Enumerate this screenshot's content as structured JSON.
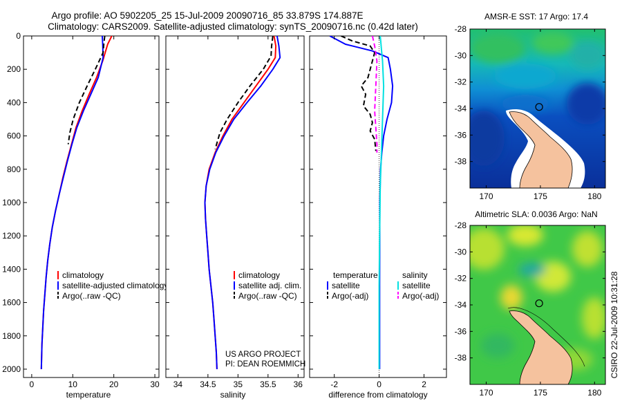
{
  "header": {
    "title_line1": "Argo profile: AO 5902205_25 15-Jul-2009 20090716_85 33.879S 174.887E",
    "title_line2": "Climatology: CARS2009. Satellite-adjusted climatology: synTS_20090716.nc (0.42d later)"
  },
  "side_label": "CSIRO 22-Jul-2009 10:31:28",
  "colors": {
    "red": "#ff0000",
    "blue": "#0000ff",
    "black": "#000000",
    "cyan": "#00e0e0",
    "magenta": "#ff00ff",
    "land": "#f5c29e"
  },
  "chart_data": [
    {
      "type": "line",
      "name": "temperature",
      "xlabel": "temperature",
      "ylabel": "",
      "xlim": [
        -2,
        31
      ],
      "ylim": [
        2050,
        0
      ],
      "xticks": [
        0,
        10,
        20,
        30
      ],
      "xtick_labels": [
        "0",
        "10",
        "20",
        "30"
      ],
      "yticks": [
        0,
        200,
        400,
        600,
        800,
        1000,
        1200,
        1400,
        1600,
        1800,
        2000
      ],
      "ytick_labels": [
        "0",
        "200",
        "400",
        "600",
        "800",
        "1000",
        "1200",
        "1400",
        "1600",
        "1800",
        "2000"
      ],
      "legend": [
        "climatology",
        "satellite-adjusted climatology",
        "Argo(..raw -QC)"
      ],
      "series": [
        {
          "name": "climatology",
          "color": "red",
          "dash": "solid",
          "points": [
            [
              19.5,
              0
            ],
            [
              18.5,
              50
            ],
            [
              17.3,
              150
            ],
            [
              15.8,
              250
            ],
            [
              14,
              350
            ],
            [
              12.3,
              450
            ],
            [
              10.8,
              550
            ],
            [
              9.7,
              650
            ],
            [
              8.6,
              750
            ],
            [
              7.6,
              850
            ],
            [
              6.7,
              950
            ],
            [
              5.8,
              1050
            ],
            [
              5,
              1150
            ],
            [
              4.4,
              1250
            ],
            [
              3.9,
              1350
            ],
            [
              3.5,
              1450
            ],
            [
              3.2,
              1550
            ],
            [
              2.9,
              1650
            ],
            [
              2.7,
              1750
            ],
            [
              2.5,
              1850
            ],
            [
              2.4,
              1950
            ],
            [
              2.35,
              2000
            ]
          ]
        },
        {
          "name": "satellite-adjusted climatology",
          "color": "blue",
          "dash": "solid",
          "points": [
            [
              17.2,
              0
            ],
            [
              17.3,
              50
            ],
            [
              17.4,
              130
            ],
            [
              16.2,
              250
            ],
            [
              14.4,
              350
            ],
            [
              12.6,
              450
            ],
            [
              11,
              550
            ],
            [
              9.8,
              650
            ],
            [
              8.7,
              750
            ],
            [
              7.7,
              850
            ],
            [
              6.7,
              950
            ],
            [
              5.8,
              1050
            ],
            [
              5,
              1150
            ],
            [
              4.4,
              1250
            ],
            [
              3.9,
              1350
            ],
            [
              3.5,
              1450
            ],
            [
              3.2,
              1550
            ],
            [
              2.9,
              1650
            ],
            [
              2.7,
              1750
            ],
            [
              2.5,
              1850
            ],
            [
              2.4,
              1950
            ],
            [
              2.35,
              2000
            ]
          ]
        },
        {
          "name": "Argo(..raw -QC)",
          "color": "black",
          "dash": "dashed",
          "points": [
            [
              17.8,
              0
            ],
            [
              17.6,
              40
            ],
            [
              17.4,
              100
            ],
            [
              15.5,
              200
            ],
            [
              13.5,
              300
            ],
            [
              11.6,
              400
            ],
            [
              10.1,
              500
            ],
            [
              9.3,
              580
            ],
            [
              8.9,
              650
            ]
          ]
        }
      ]
    },
    {
      "type": "line",
      "name": "salinity",
      "xlabel": "salinity",
      "ylabel": "",
      "xlim": [
        33.8,
        36.1
      ],
      "ylim": [
        2050,
        0
      ],
      "xticks": [
        34,
        34.5,
        35,
        35.5,
        36
      ],
      "xtick_labels": [
        "34",
        "34.5",
        "35",
        "35.5",
        "36"
      ],
      "legend": [
        "climatology",
        "satellite adj. clim.",
        "Argo(..raw -QC)"
      ],
      "annotation": [
        "US ARGO PROJECT",
        "PI: DEAN ROEMMICH"
      ],
      "series": [
        {
          "name": "climatology",
          "color": "red",
          "dash": "solid",
          "points": [
            [
              35.6,
              0
            ],
            [
              35.63,
              60
            ],
            [
              35.62,
              130
            ],
            [
              35.5,
              200
            ],
            [
              35.3,
              300
            ],
            [
              35.1,
              400
            ],
            [
              34.9,
              500
            ],
            [
              34.75,
              600
            ],
            [
              34.62,
              700
            ],
            [
              34.52,
              800
            ],
            [
              34.47,
              900
            ],
            [
              34.45,
              1000
            ],
            [
              34.46,
              1100
            ],
            [
              34.48,
              1200
            ],
            [
              34.5,
              1300
            ],
            [
              34.52,
              1400
            ],
            [
              34.55,
              1500
            ],
            [
              34.58,
              1600
            ],
            [
              34.6,
              1700
            ],
            [
              34.62,
              1800
            ],
            [
              34.64,
              1900
            ],
            [
              34.65,
              2000
            ]
          ]
        },
        {
          "name": "satellite adj. clim.",
          "color": "blue",
          "dash": "solid",
          "points": [
            [
              35.65,
              0
            ],
            [
              35.68,
              60
            ],
            [
              35.7,
              130
            ],
            [
              35.58,
              200
            ],
            [
              35.38,
              300
            ],
            [
              35.15,
              400
            ],
            [
              34.93,
              500
            ],
            [
              34.77,
              600
            ],
            [
              34.63,
              700
            ],
            [
              34.53,
              800
            ],
            [
              34.47,
              900
            ],
            [
              34.45,
              1000
            ],
            [
              34.46,
              1100
            ],
            [
              34.48,
              1200
            ],
            [
              34.5,
              1300
            ],
            [
              34.52,
              1400
            ],
            [
              34.55,
              1500
            ],
            [
              34.58,
              1600
            ],
            [
              34.6,
              1700
            ],
            [
              34.62,
              1800
            ],
            [
              34.64,
              1900
            ],
            [
              34.65,
              2000
            ]
          ]
        },
        {
          "name": "Argo(..raw -QC)",
          "color": "black",
          "dash": "dashed",
          "points": [
            [
              35.58,
              0
            ],
            [
              35.56,
              60
            ],
            [
              35.55,
              120
            ],
            [
              35.42,
              200
            ],
            [
              35.2,
              300
            ],
            [
              35.0,
              400
            ],
            [
              34.82,
              500
            ],
            [
              34.7,
              580
            ],
            [
              34.62,
              680
            ]
          ]
        }
      ]
    },
    {
      "type": "line",
      "name": "difference",
      "xlabel": "difference from climatology",
      "ylabel": "",
      "xlim": [
        -3.1,
        3.0
      ],
      "ylim": [
        2050,
        0
      ],
      "xticks": [
        -2,
        0,
        2
      ],
      "xtick_labels": [
        "-2",
        "0",
        "2"
      ],
      "legend_temperature_header": "temperature",
      "legend_salinity_header": "salinity",
      "legend_temperature": [
        "satellite",
        "Argo(-adj)"
      ],
      "legend_salinity": [
        "satellite",
        "Argo(-adj)"
      ],
      "series": [
        {
          "name": "temperature satellite",
          "color": "blue",
          "dash": "solid",
          "points": [
            [
              -2.2,
              0
            ],
            [
              -1.5,
              50
            ],
            [
              -0.3,
              90
            ],
            [
              0.4,
              130
            ],
            [
              0.5,
              200
            ],
            [
              0.6,
              300
            ],
            [
              0.55,
              400
            ],
            [
              0.35,
              500
            ],
            [
              0.2,
              600
            ],
            [
              0.12,
              700
            ],
            [
              0.06,
              800
            ],
            [
              0.03,
              1000
            ],
            [
              0.02,
              1500
            ],
            [
              0.02,
              2000
            ]
          ]
        },
        {
          "name": "temperature Argo(-adj)",
          "color": "black",
          "dash": "dashed",
          "points": [
            [
              -1.7,
              0
            ],
            [
              -1.2,
              30
            ],
            [
              -0.4,
              60
            ],
            [
              -0.2,
              100
            ],
            [
              -0.5,
              250
            ],
            [
              -0.8,
              300
            ],
            [
              -0.6,
              350
            ],
            [
              -0.7,
              420
            ],
            [
              -0.4,
              470
            ],
            [
              -0.3,
              520
            ],
            [
              -0.4,
              570
            ],
            [
              -0.2,
              620
            ],
            [
              -0.15,
              690
            ]
          ]
        },
        {
          "name": "salinity satellite",
          "color": "cyan",
          "dash": "solid",
          "points": [
            [
              0.05,
              0
            ],
            [
              0.1,
              80
            ],
            [
              0.15,
              150
            ],
            [
              0.2,
              300
            ],
            [
              0.15,
              500
            ],
            [
              0.1,
              700
            ],
            [
              0.05,
              900
            ],
            [
              0.02,
              1200
            ],
            [
              0,
              1500
            ],
            [
              0,
              2000
            ]
          ]
        },
        {
          "name": "salinity Argo(-adj)",
          "color": "magenta",
          "dash": "dashed",
          "points": [
            [
              -0.3,
              0
            ],
            [
              -0.2,
              60
            ],
            [
              -0.1,
              150
            ],
            [
              -0.15,
              300
            ],
            [
              -0.2,
              450
            ],
            [
              -0.15,
              550
            ],
            [
              -0.1,
              650
            ],
            [
              -0.1,
              700
            ]
          ]
        }
      ]
    },
    {
      "type": "heatmap",
      "name": "AMSR-E SST",
      "title": "AMSR-E SST: 17 Argo: 17.4",
      "xlim": [
        168.5,
        181
      ],
      "ylim": [
        -40,
        -28
      ],
      "xticks": [
        170,
        175,
        180
      ],
      "xtick_labels": [
        "170",
        "175",
        "180"
      ],
      "yticks": [
        -28,
        -30,
        -32,
        -34,
        -36,
        -38
      ],
      "ytick_labels": [
        "-28",
        "-30",
        "-32",
        "-34",
        "-36",
        "-38"
      ],
      "marker": {
        "lon": 174.887,
        "lat": -33.879
      }
    },
    {
      "type": "heatmap",
      "name": "Altimetric SLA",
      "title": "Altimetric SLA: 0.0036 Argo: NaN",
      "xlim": [
        168.5,
        181
      ],
      "ylim": [
        -40,
        -28
      ],
      "xticks": [
        170,
        175,
        180
      ],
      "xtick_labels": [
        "170",
        "175",
        "180"
      ],
      "yticks": [
        -28,
        -30,
        -32,
        -34,
        -36,
        -38
      ],
      "ytick_labels": [
        "-28",
        "-30",
        "-32",
        "-34",
        "-36",
        "-38"
      ],
      "marker": {
        "lon": 174.887,
        "lat": -33.879
      }
    }
  ]
}
